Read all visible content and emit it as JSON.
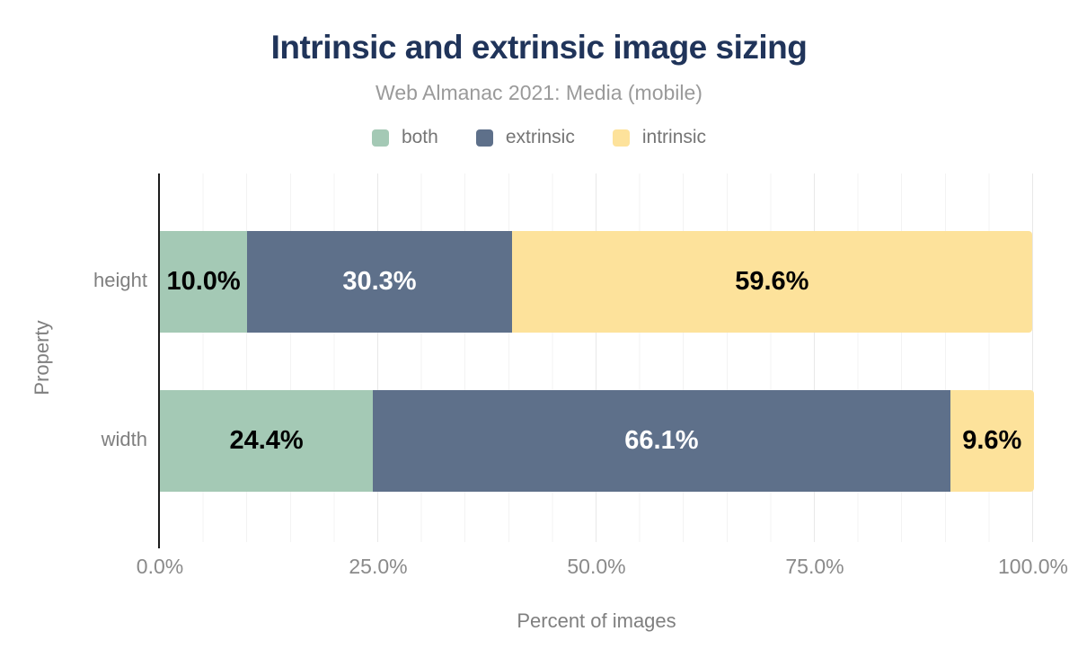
{
  "header": {
    "title": "Intrinsic and extrinsic image sizing",
    "subtitle": "Web Almanac 2021: Media (mobile)"
  },
  "chart_data": {
    "type": "bar",
    "stacked": true,
    "orientation": "horizontal",
    "title": "Intrinsic and extrinsic image sizing",
    "subtitle": "Web Almanac 2021: Media (mobile)",
    "categories": [
      "height",
      "width"
    ],
    "series": [
      {
        "name": "both",
        "color": "#a4c9b5",
        "label_color": "#000000",
        "values": [
          10.0,
          24.4
        ],
        "labels": [
          "10.0%",
          "24.4%"
        ]
      },
      {
        "name": "extrinsic",
        "color": "#5e708a",
        "label_color": "#ffffff",
        "values": [
          30.3,
          66.1
        ],
        "labels": [
          "30.3%",
          "66.1%"
        ]
      },
      {
        "name": "intrinsic",
        "color": "#fde29b",
        "label_color": "#000000",
        "values": [
          59.6,
          9.6
        ],
        "labels": [
          "59.6%",
          "9.6%"
        ]
      }
    ],
    "xlabel": "Percent of images",
    "ylabel": "Property",
    "xlim": [
      0,
      100
    ],
    "x_ticks": {
      "positions": [
        0,
        25,
        50,
        75,
        100
      ],
      "labels": [
        "0.0%",
        "25.0%",
        "50.0%",
        "75.0%",
        "100.0%"
      ]
    },
    "grid": "vertical, minor every 5%, major every 25%",
    "legend_position": "top"
  }
}
